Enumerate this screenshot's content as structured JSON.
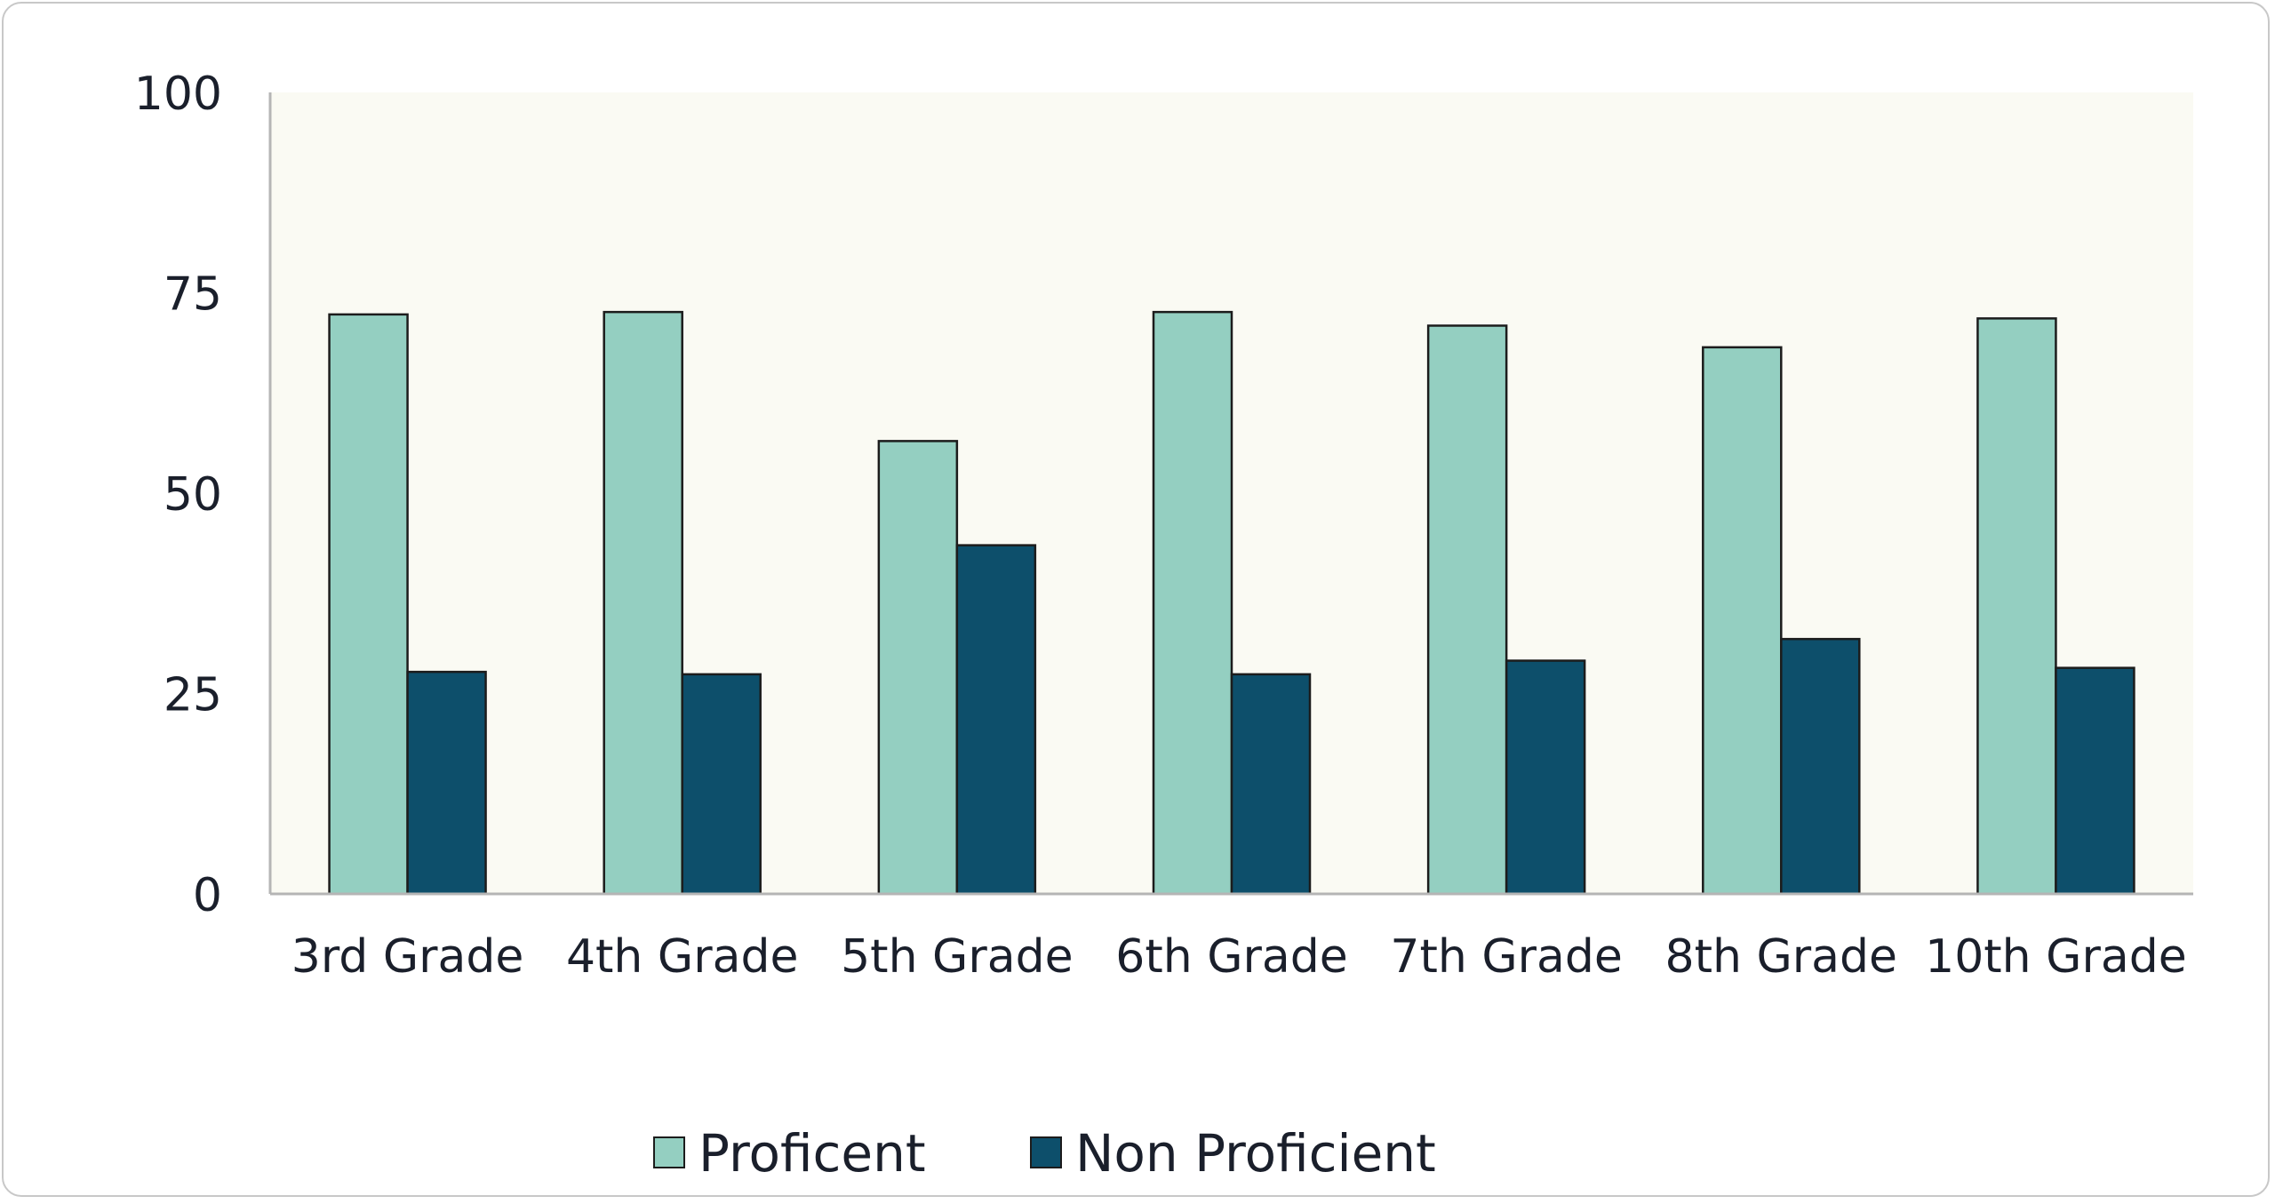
{
  "chart_data": {
    "type": "bar",
    "title": "",
    "xlabel": "",
    "ylabel": "",
    "categories": [
      "3rd Grade",
      "4th Grade",
      "5th Grade",
      "6th Grade",
      "7th Grade",
      "8th Grade",
      "10th Grade"
    ],
    "series": [
      {
        "name": "Proficent",
        "color": "#94cfc1",
        "values": [
          72.3,
          72.6,
          56.5,
          72.6,
          70.9,
          68.2,
          71.8
        ]
      },
      {
        "name": "Non Proficient",
        "color": "#0d4f6b",
        "values": [
          27.7,
          27.4,
          43.5,
          27.4,
          29.1,
          31.8,
          28.2
        ]
      }
    ],
    "ylim": [
      0,
      100
    ],
    "yticks": [
      "0",
      "25",
      "50",
      "75",
      "100"
    ],
    "grid": false,
    "legend_position": "bottom",
    "plot_background": "#fafaf3"
  }
}
